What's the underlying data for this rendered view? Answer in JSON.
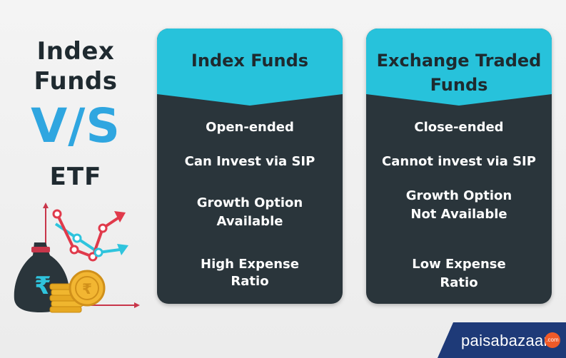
{
  "title": {
    "line1": "Index",
    "line2": "Funds",
    "vs": "V/S",
    "line3": "ETF"
  },
  "cards": [
    {
      "heading": [
        "Index Funds"
      ],
      "rows": [
        [
          "Open-ended"
        ],
        [
          "Can Invest via SIP"
        ],
        [
          "Growth Option",
          "Available"
        ],
        [
          "High Expense",
          "Ratio"
        ]
      ]
    },
    {
      "heading": [
        "Exchange Traded",
        "Funds"
      ],
      "rows": [
        [
          "Close-ended"
        ],
        [
          "Cannot invest via SIP"
        ],
        [
          "Growth Option",
          "Not Available"
        ],
        [
          "Low Expense",
          "Ratio"
        ]
      ]
    }
  ],
  "brand": {
    "name": "paisabazaar",
    "badge": ".com"
  },
  "colors": {
    "accent_blue": "#2fa6e0",
    "header_cyan": "#27c2db",
    "card_dark": "#2a353b",
    "text_dark": "#1f2a30",
    "brand_navy": "#1e3a78",
    "brand_orange": "#f05a28"
  },
  "icons": [
    "money-bag-rupee-icon",
    "coin-stack-icon",
    "trend-arrows-icon"
  ]
}
